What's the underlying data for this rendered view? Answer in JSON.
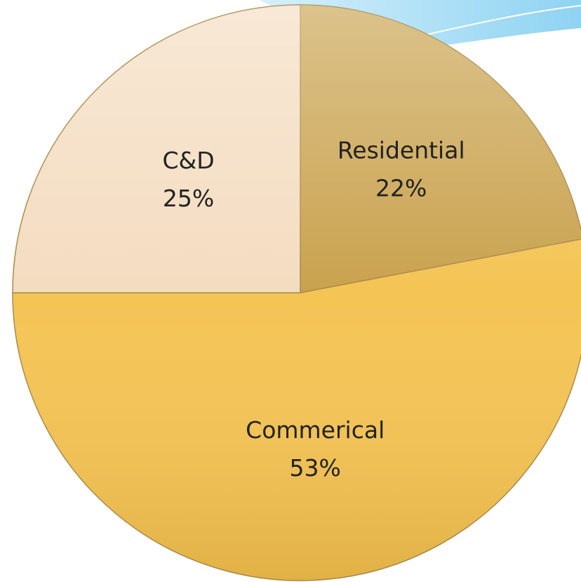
{
  "chart_data": {
    "type": "pie",
    "categories": [
      "Residential",
      "Commerical",
      "C&D"
    ],
    "values": [
      22,
      53,
      25
    ],
    "value_labels": [
      "22%",
      "53%",
      "25%"
    ],
    "colors": [
      "#c9a24e",
      "#f4c454",
      "#f4dcc0"
    ]
  }
}
